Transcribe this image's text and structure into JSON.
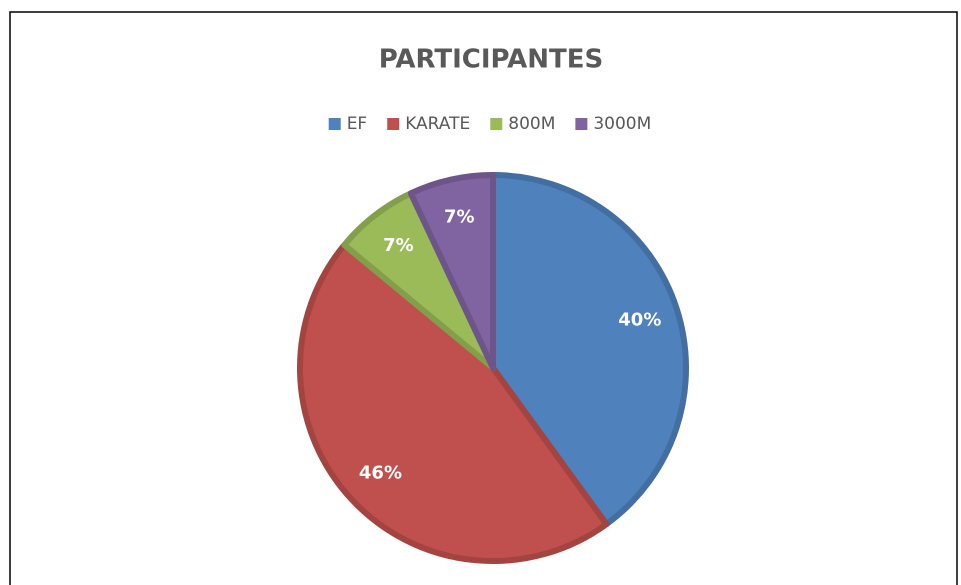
{
  "chart_data": {
    "type": "pie",
    "title": "PARTICIPANTES",
    "categories": [
      "EF",
      "KARATE",
      "800M",
      "3000M"
    ],
    "values": [
      40,
      46,
      7,
      7
    ],
    "value_labels": [
      "40%",
      "46%",
      "7%",
      "7%"
    ],
    "colors": [
      "#4f81bd",
      "#c0504d",
      "#9bbb59",
      "#8064a2"
    ],
    "legend": "top"
  }
}
